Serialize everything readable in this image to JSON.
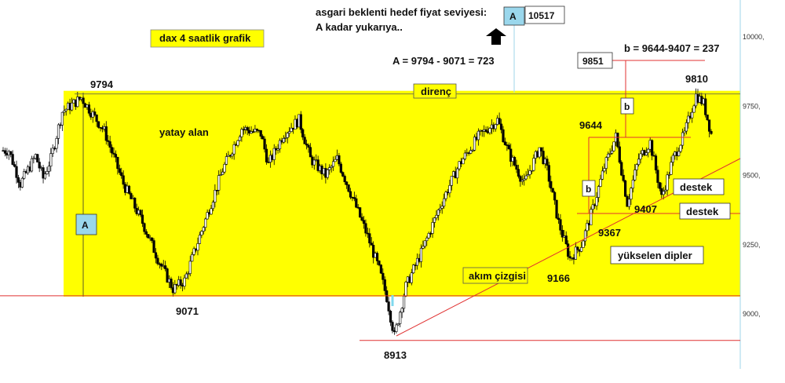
{
  "chart_data": {
    "type": "candlestick",
    "title": "dax  4 saatlik grafik",
    "y_ticks": [
      "10000,",
      "9750,",
      "9500,",
      "9250,",
      "9000,"
    ],
    "y_tick_values": [
      10000,
      9750,
      9500,
      9250,
      9000
    ],
    "ylim": [
      8850,
      10130
    ],
    "grid": false,
    "levels": {
      "resistance": 9794,
      "support_low": 9071,
      "low": 8913
    },
    "zones": [
      {
        "name": "yatay alan",
        "from": 9071,
        "to": 9794,
        "color": "#ffff00"
      }
    ],
    "annotations": {
      "target_line1": "asgari beklenti hedef fiyat seviyesi:",
      "target_line2": "A kadar yukarıya..",
      "target_box": "A",
      "target_value": "10517",
      "calc_a": "A = 9794 - 9071 = 723",
      "calc_b": "b = 9644-9407 = 237",
      "box_9851": "9851",
      "resistance_label": "direnç",
      "zone_label": "yatay alan",
      "label_9794": "9794",
      "label_9071": "9071",
      "label_8913": "8913",
      "label_9644": "9644",
      "label_9810": "9810",
      "label_9367": "9367",
      "label_9407": "9407",
      "label_9166": "9166",
      "b_upper": "b",
      "b_lower": "b",
      "a_box": "A",
      "support1": "destek",
      "support2": "destek",
      "trend_label": "akım çizgisi",
      "rising_lows": "yükselen dipler"
    },
    "colors": {
      "zone": "#ffff00",
      "candle": "#000000",
      "red_line": "#e03030",
      "box_blue": "#9ad7ec",
      "cyan": "#7fd8ee"
    },
    "ohlc_path": [
      {
        "v": 9590,
        "n": 4
      },
      {
        "v": 9470,
        "n": 6
      },
      {
        "v": 9570,
        "n": 8
      },
      {
        "v": 9490,
        "n": 4
      },
      {
        "v": 9560,
        "n": 4
      },
      {
        "v": 9730,
        "n": 6
      },
      {
        "v": 9780,
        "n": 10
      },
      {
        "v": 9720,
        "n": 6
      },
      {
        "v": 9660,
        "n": 6
      },
      {
        "v": 9470,
        "n": 10
      },
      {
        "v": 9330,
        "n": 10
      },
      {
        "v": 9200,
        "n": 8
      },
      {
        "v": 9090,
        "n": 8
      },
      {
        "v": 9120,
        "n": 6
      },
      {
        "v": 9320,
        "n": 10
      },
      {
        "v": 9520,
        "n": 10
      },
      {
        "v": 9670,
        "n": 10
      },
      {
        "v": 9650,
        "n": 10
      },
      {
        "v": 9540,
        "n": 4
      },
      {
        "v": 9650,
        "n": 8
      },
      {
        "v": 9700,
        "n": 8
      },
      {
        "v": 9560,
        "n": 6
      },
      {
        "v": 9500,
        "n": 8
      },
      {
        "v": 9560,
        "n": 6
      },
      {
        "v": 9420,
        "n": 8
      },
      {
        "v": 9280,
        "n": 8
      },
      {
        "v": 9160,
        "n": 6
      },
      {
        "v": 9060,
        "n": 4
      },
      {
        "v": 8920,
        "n": 4
      },
      {
        "v": 9100,
        "n": 6
      },
      {
        "v": 9220,
        "n": 8
      },
      {
        "v": 9390,
        "n": 10
      },
      {
        "v": 9540,
        "n": 10
      },
      {
        "v": 9640,
        "n": 10
      },
      {
        "v": 9700,
        "n": 10
      },
      {
        "v": 9580,
        "n": 6
      },
      {
        "v": 9470,
        "n": 8
      },
      {
        "v": 9600,
        "n": 8
      },
      {
        "v": 9520,
        "n": 4
      },
      {
        "v": 9330,
        "n": 6
      },
      {
        "v": 9200,
        "n": 6
      },
      {
        "v": 9250,
        "n": 6
      },
      {
        "v": 9380,
        "n": 6
      },
      {
        "v": 9530,
        "n": 6
      },
      {
        "v": 9640,
        "n": 6
      },
      {
        "v": 9400,
        "n": 6
      },
      {
        "v": 9560,
        "n": 6
      },
      {
        "v": 9620,
        "n": 6
      },
      {
        "v": 9420,
        "n": 6
      },
      {
        "v": 9560,
        "n": 6
      },
      {
        "v": 9650,
        "n": 6
      },
      {
        "v": 9790,
        "n": 6
      },
      {
        "v": 9760,
        "n": 4
      },
      {
        "v": 9650,
        "n": 4
      }
    ]
  }
}
